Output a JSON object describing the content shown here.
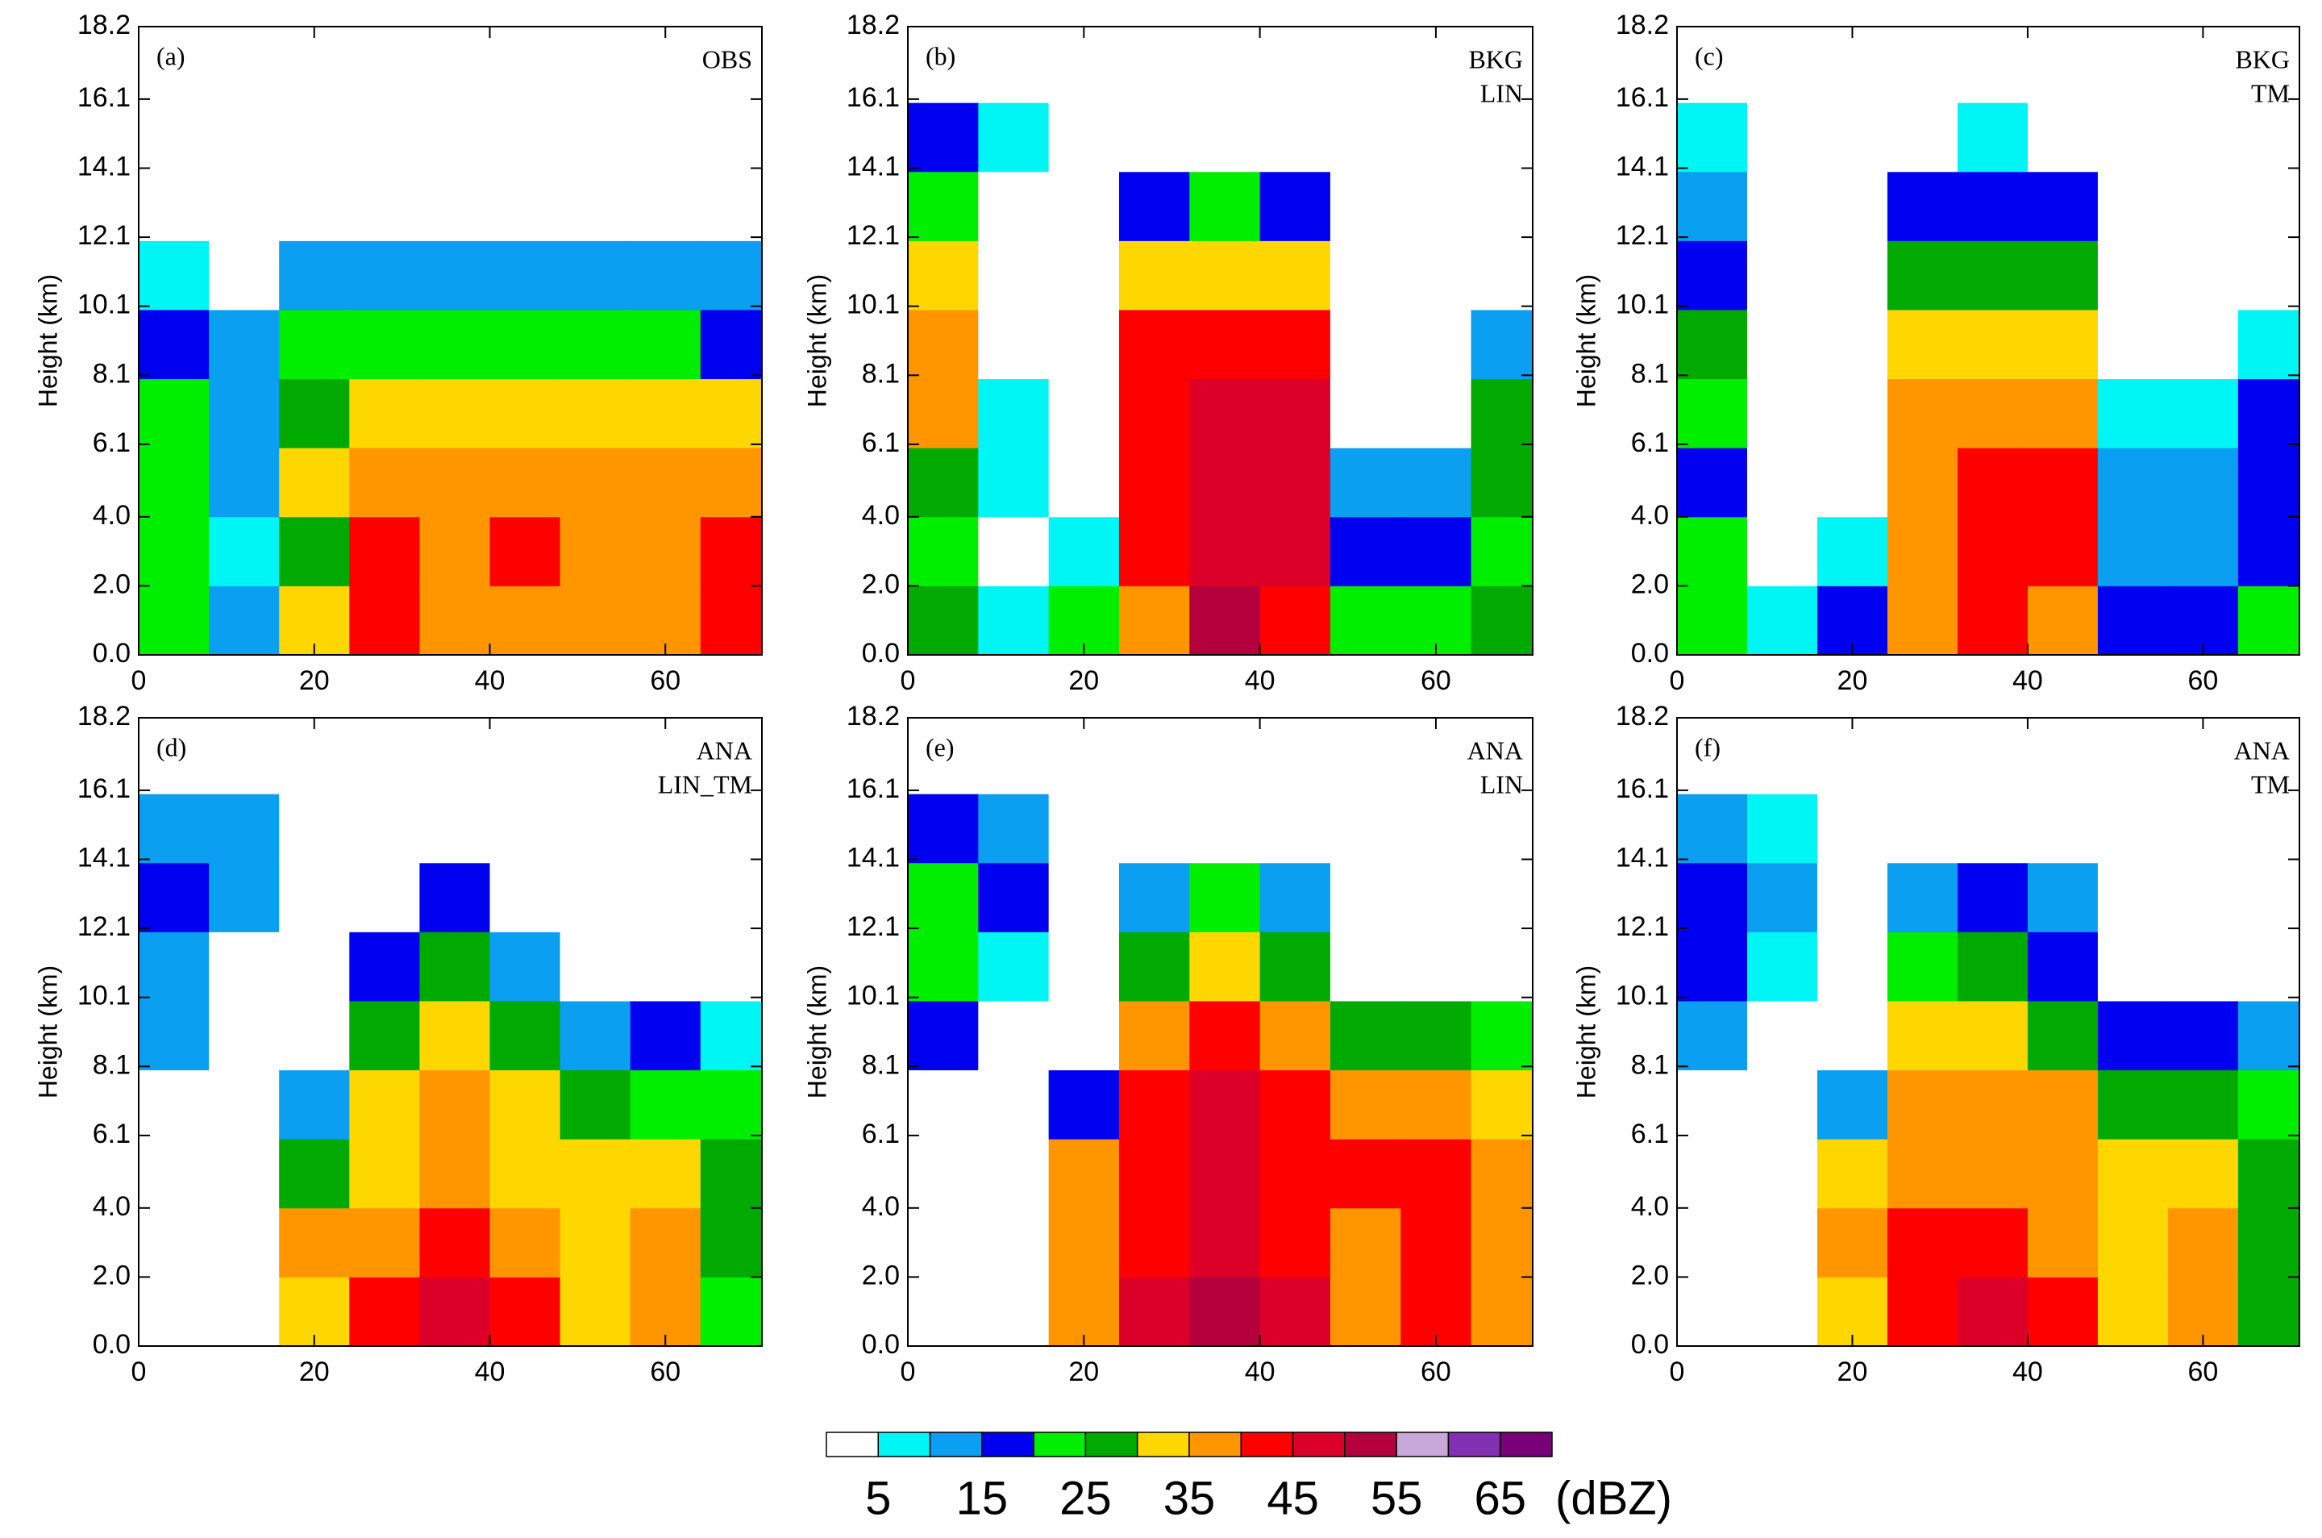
{
  "chart_data": [
    {
      "type": "contour",
      "label": "(a)",
      "annotation": [
        "OBS"
      ],
      "ylabel": "Height (km)",
      "x": [
        4,
        12,
        20,
        28,
        36,
        44,
        52,
        60,
        68
      ],
      "y": [
        1,
        3,
        5,
        7,
        9,
        11,
        13,
        15,
        17
      ],
      "z": [
        [
          22,
          22,
          22,
          22,
          17,
          7,
          0,
          0,
          0
        ],
        [
          12,
          7,
          12,
          12,
          12,
          0,
          0,
          0,
          0
        ],
        [
          32,
          27,
          32,
          27,
          22,
          12,
          0,
          0,
          0
        ],
        [
          42,
          42,
          37,
          32,
          22,
          12,
          0,
          0,
          0
        ],
        [
          37,
          37,
          37,
          32,
          22,
          12,
          0,
          0,
          0
        ],
        [
          37,
          42,
          37,
          32,
          22,
          12,
          0,
          0,
          0
        ],
        [
          37,
          37,
          37,
          32,
          22,
          12,
          0,
          0,
          0
        ],
        [
          37,
          37,
          37,
          32,
          22,
          12,
          0,
          0,
          0
        ],
        [
          42,
          42,
          37,
          32,
          17,
          12,
          0,
          0,
          0
        ]
      ],
      "xlim": [
        0,
        71
      ],
      "xticks": [
        0,
        20,
        40,
        60
      ],
      "ylim": [
        0,
        18.2
      ],
      "yticks": [
        {
          "value": 0,
          "label": "0.0"
        },
        {
          "value": 2,
          "label": "2.0"
        },
        {
          "value": 4,
          "label": "4.0"
        },
        6.1,
        8.1,
        10.1,
        12.1,
        14.1,
        16.1,
        18.2
      ]
    },
    {
      "type": "contour",
      "label": "(b)",
      "annotation": [
        "BKG",
        "LIN"
      ],
      "ylabel": "Height (km)",
      "x": [
        4,
        12,
        20,
        28,
        36,
        44,
        52,
        60,
        68
      ],
      "y": [
        1,
        3,
        5,
        7,
        9,
        11,
        13,
        15,
        17
      ],
      "z": [
        [
          27,
          22,
          27,
          37,
          37,
          32,
          22,
          17,
          0
        ],
        [
          7,
          0,
          7,
          7,
          0,
          0,
          0,
          7,
          0
        ],
        [
          22,
          7,
          0,
          0,
          0,
          0,
          0,
          0,
          0
        ],
        [
          37,
          42,
          42,
          42,
          42,
          32,
          17,
          0,
          0
        ],
        [
          52,
          47,
          47,
          47,
          42,
          32,
          22,
          0,
          0
        ],
        [
          42,
          47,
          47,
          47,
          42,
          32,
          17,
          0,
          0
        ],
        [
          22,
          17,
          12,
          0,
          0,
          0,
          0,
          0,
          0
        ],
        [
          22,
          17,
          12,
          0,
          0,
          0,
          0,
          0,
          0
        ],
        [
          27,
          22,
          27,
          27,
          12,
          0,
          0,
          0,
          0
        ]
      ],
      "xlim": [
        0,
        71
      ],
      "xticks": [
        0,
        20,
        40,
        60
      ],
      "ylim": [
        0,
        18.2
      ],
      "yticks": [
        {
          "value": 0,
          "label": "0.0"
        },
        {
          "value": 2,
          "label": "2.0"
        },
        {
          "value": 4,
          "label": "4.0"
        },
        6.1,
        8.1,
        10.1,
        12.1,
        14.1,
        16.1,
        18.2
      ]
    },
    {
      "type": "contour",
      "label": "(c)",
      "annotation": [
        "BKG",
        "TM"
      ],
      "ylabel": "Height (km)",
      "x": [
        4,
        12,
        20,
        28,
        36,
        44,
        52,
        60,
        68
      ],
      "y": [
        1,
        3,
        5,
        7,
        9,
        11,
        13,
        15,
        17
      ],
      "z": [
        [
          22,
          22,
          17,
          22,
          27,
          17,
          12,
          7,
          0
        ],
        [
          7,
          0,
          0,
          0,
          0,
          0,
          0,
          0,
          0
        ],
        [
          17,
          7,
          0,
          0,
          0,
          0,
          0,
          0,
          0
        ],
        [
          37,
          37,
          37,
          37,
          32,
          27,
          17,
          0,
          0
        ],
        [
          42,
          42,
          42,
          37,
          32,
          27,
          17,
          7,
          0
        ],
        [
          37,
          42,
          42,
          37,
          32,
          27,
          17,
          0,
          0
        ],
        [
          17,
          12,
          12,
          7,
          0,
          0,
          0,
          0,
          0
        ],
        [
          17,
          12,
          12,
          7,
          0,
          0,
          0,
          0,
          0
        ],
        [
          22,
          17,
          17,
          17,
          7,
          0,
          0,
          0,
          0
        ]
      ],
      "xlim": [
        0,
        71
      ],
      "xticks": [
        0,
        20,
        40,
        60
      ],
      "ylim": [
        0,
        18.2
      ],
      "yticks": [
        {
          "value": 0,
          "label": "0.0"
        },
        {
          "value": 2,
          "label": "2.0"
        },
        {
          "value": 4,
          "label": "4.0"
        },
        6.1,
        8.1,
        10.1,
        12.1,
        14.1,
        16.1,
        18.2
      ]
    },
    {
      "type": "contour",
      "label": "(d)",
      "annotation": [
        "ANA",
        "LIN_TM"
      ],
      "ylabel": "Height (km)",
      "x": [
        4,
        12,
        20,
        28,
        36,
        44,
        52,
        60,
        68
      ],
      "y": [
        1,
        3,
        5,
        7,
        9,
        11,
        13,
        15,
        17
      ],
      "z": [
        [
          0,
          0,
          0,
          0,
          12,
          12,
          17,
          12,
          0
        ],
        [
          0,
          0,
          0,
          0,
          0,
          0,
          12,
          12,
          0
        ],
        [
          32,
          37,
          27,
          12,
          0,
          0,
          0,
          0,
          0
        ],
        [
          42,
          37,
          32,
          32,
          27,
          17,
          0,
          0,
          0
        ],
        [
          47,
          42,
          37,
          37,
          32,
          27,
          17,
          0,
          0
        ],
        [
          42,
          37,
          32,
          32,
          27,
          12,
          0,
          0,
          0
        ],
        [
          32,
          32,
          32,
          27,
          12,
          0,
          0,
          0,
          0
        ],
        [
          37,
          37,
          32,
          22,
          17,
          0,
          0,
          0,
          0
        ],
        [
          22,
          27,
          27,
          22,
          7,
          0,
          0,
          0,
          0
        ]
      ],
      "xlim": [
        0,
        71
      ],
      "xticks": [
        0,
        20,
        40,
        60
      ],
      "ylim": [
        0,
        18.2
      ],
      "yticks": [
        {
          "value": 0,
          "label": "0.0"
        },
        {
          "value": 2,
          "label": "2.0"
        },
        {
          "value": 4,
          "label": "4.0"
        },
        6.1,
        8.1,
        10.1,
        12.1,
        14.1,
        16.1,
        18.2
      ]
    },
    {
      "type": "contour",
      "label": "(e)",
      "annotation": [
        "ANA",
        "LIN"
      ],
      "ylabel": "Height (km)",
      "x": [
        4,
        12,
        20,
        28,
        36,
        44,
        52,
        60,
        68
      ],
      "y": [
        1,
        3,
        5,
        7,
        9,
        11,
        13,
        15,
        17
      ],
      "z": [
        [
          0,
          0,
          0,
          0,
          17,
          22,
          22,
          17,
          0
        ],
        [
          0,
          0,
          0,
          0,
          0,
          7,
          17,
          12,
          0
        ],
        [
          37,
          37,
          37,
          17,
          0,
          0,
          0,
          0,
          0
        ],
        [
          47,
          42,
          42,
          42,
          37,
          27,
          12,
          0,
          0
        ],
        [
          52,
          47,
          47,
          47,
          42,
          32,
          22,
          0,
          0
        ],
        [
          47,
          42,
          42,
          42,
          37,
          27,
          12,
          0,
          0
        ],
        [
          37,
          37,
          42,
          37,
          27,
          0,
          0,
          0,
          0
        ],
        [
          42,
          42,
          42,
          37,
          27,
          0,
          0,
          0,
          0
        ],
        [
          37,
          37,
          37,
          32,
          22,
          0,
          0,
          0,
          0
        ]
      ],
      "xlim": [
        0,
        71
      ],
      "xticks": [
        0,
        20,
        40,
        60
      ],
      "ylim": [
        0,
        18.2
      ],
      "yticks": [
        {
          "value": 0,
          "label": "0.0"
        },
        {
          "value": 2,
          "label": "2.0"
        },
        {
          "value": 4,
          "label": "4.0"
        },
        6.1,
        8.1,
        10.1,
        12.1,
        14.1,
        16.1,
        18.2
      ]
    },
    {
      "type": "contour",
      "label": "(f)",
      "annotation": [
        "ANA",
        "TM"
      ],
      "ylabel": "Height (km)",
      "x": [
        4,
        12,
        20,
        28,
        36,
        44,
        52,
        60,
        68
      ],
      "y": [
        1,
        3,
        5,
        7,
        9,
        11,
        13,
        15,
        17
      ],
      "z": [
        [
          0,
          0,
          0,
          0,
          12,
          17,
          17,
          12,
          0
        ],
        [
          0,
          0,
          0,
          0,
          0,
          7,
          12,
          7,
          0
        ],
        [
          32,
          37,
          32,
          12,
          0,
          0,
          0,
          0,
          0
        ],
        [
          42,
          42,
          37,
          37,
          32,
          22,
          12,
          0,
          0
        ],
        [
          47,
          42,
          37,
          37,
          32,
          27,
          17,
          0,
          0
        ],
        [
          42,
          37,
          37,
          37,
          27,
          17,
          12,
          0,
          0
        ],
        [
          32,
          32,
          32,
          27,
          17,
          0,
          0,
          0,
          0
        ],
        [
          37,
          37,
          32,
          27,
          17,
          0,
          0,
          0,
          0
        ],
        [
          27,
          27,
          27,
          22,
          12,
          0,
          0,
          0,
          0
        ]
      ],
      "xlim": [
        0,
        71
      ],
      "xticks": [
        0,
        20,
        40,
        60
      ],
      "ylim": [
        0,
        18.2
      ],
      "yticks": [
        {
          "value": 0,
          "label": "0.0"
        },
        {
          "value": 2,
          "label": "2.0"
        },
        {
          "value": 4,
          "label": "4.0"
        },
        6.1,
        8.1,
        10.1,
        12.1,
        14.1,
        16.1,
        18.2
      ]
    }
  ],
  "colorbar": {
    "levels": [
      5,
      10,
      15,
      20,
      25,
      30,
      35,
      40,
      45,
      50,
      55,
      60,
      65
    ],
    "colors": [
      "#ffffff",
      "#00f5f5",
      "#0a9ff0",
      "#0000f0",
      "#00ee00",
      "#00aa00",
      "#ffd700",
      "#ff9600",
      "#ff0000",
      "#dc0028",
      "#b4003c",
      "#c8a8d8",
      "#8030b0",
      "#780078"
    ],
    "ticks": [
      5,
      15,
      25,
      35,
      45,
      55,
      65
    ],
    "unit": "(dBZ)"
  }
}
